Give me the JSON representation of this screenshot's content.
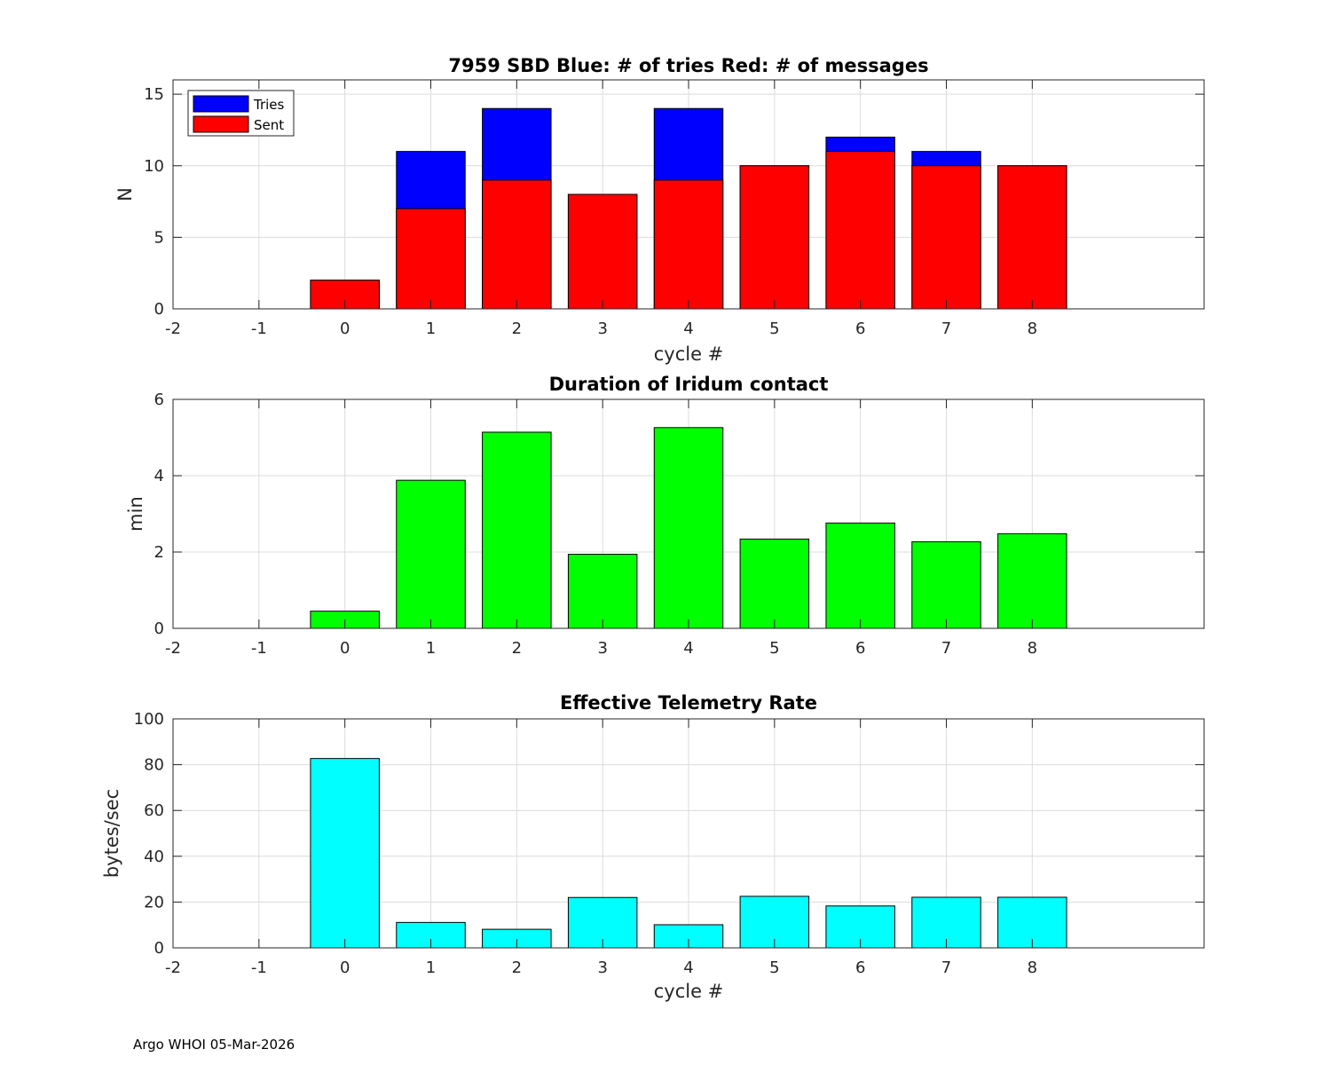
{
  "footer": "Argo WHOI 05-Mar-2026",
  "chart_data": [
    {
      "id": "comms",
      "type": "bar",
      "title": "7959 SBD  Blue: # of tries   Red: # of messages",
      "xlabel": "cycle #",
      "ylabel": "N",
      "xlim": [
        -2,
        10
      ],
      "ylim": [
        0,
        16
      ],
      "xticks": [
        -2,
        -1,
        0,
        1,
        2,
        3,
        4,
        5,
        6,
        7,
        8
      ],
      "yticks": [
        0,
        5,
        10,
        15
      ],
      "categories": [
        0,
        1,
        2,
        3,
        4,
        5,
        6,
        7,
        8
      ],
      "series": [
        {
          "name": "Tries",
          "color": "#0000ff",
          "values": [
            2,
            11,
            14,
            8,
            14,
            10,
            12,
            11,
            10
          ]
        },
        {
          "name": "Sent",
          "color": "#ff0000",
          "values": [
            2,
            7,
            9,
            8,
            9,
            10,
            11,
            10,
            10
          ]
        }
      ],
      "legend": {
        "position": "top-left",
        "entries": [
          "Tries",
          "Sent"
        ]
      }
    },
    {
      "id": "duration",
      "type": "bar",
      "title": "Duration of Iridum contact",
      "xlabel": "",
      "ylabel": "min",
      "xlim": [
        -2,
        10
      ],
      "ylim": [
        0,
        6
      ],
      "xticks": [
        -2,
        -1,
        0,
        1,
        2,
        3,
        4,
        5,
        6,
        7,
        8
      ],
      "yticks": [
        0,
        2,
        4,
        6
      ],
      "categories": [
        0,
        1,
        2,
        3,
        4,
        5,
        6,
        7,
        8
      ],
      "series": [
        {
          "name": "Duration",
          "color": "#00ff00",
          "values": [
            0.45,
            3.88,
            5.14,
            1.94,
            5.26,
            2.34,
            2.76,
            2.27,
            2.48
          ]
        }
      ]
    },
    {
      "id": "rate",
      "type": "bar",
      "title": "Effective Telemetry Rate",
      "xlabel": "cycle #",
      "ylabel": "bytes/sec",
      "xlim": [
        -2,
        10
      ],
      "ylim": [
        0,
        100
      ],
      "xticks": [
        -2,
        -1,
        0,
        1,
        2,
        3,
        4,
        5,
        6,
        7,
        8
      ],
      "yticks": [
        0,
        20,
        40,
        60,
        80,
        100
      ],
      "categories": [
        0,
        1,
        2,
        3,
        4,
        5,
        6,
        7,
        8
      ],
      "series": [
        {
          "name": "Rate",
          "color": "#00ffff",
          "values": [
            82.7,
            11.1,
            8.1,
            22.0,
            10.1,
            22.5,
            18.3,
            22.1,
            22.1
          ]
        }
      ]
    }
  ]
}
